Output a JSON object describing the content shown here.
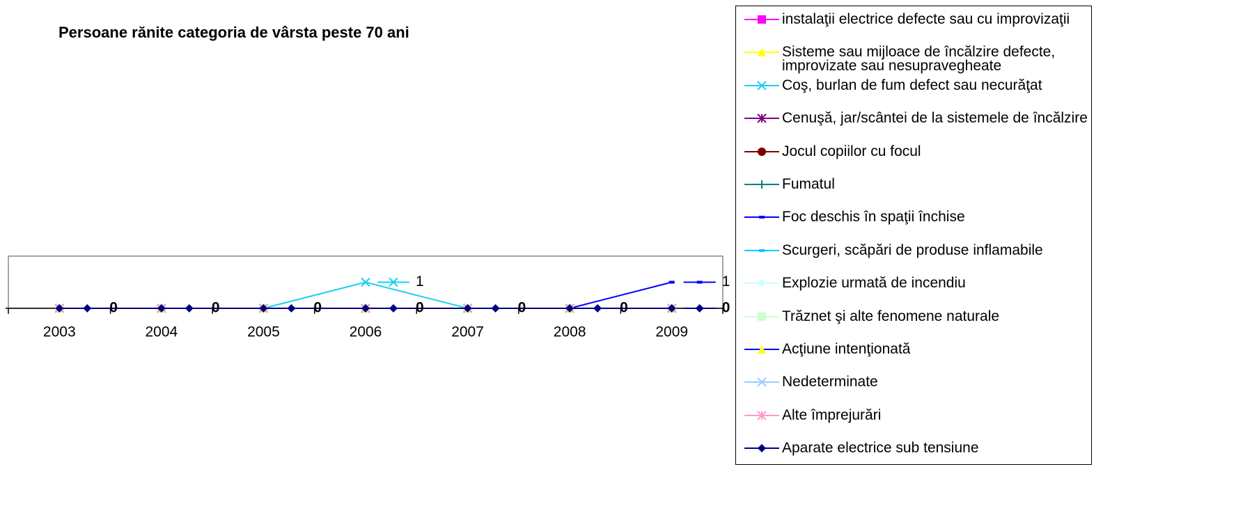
{
  "chart_data": {
    "type": "line",
    "title": "Persoane rănite categoria de vârsta peste 70  ani",
    "categories": [
      "2003",
      "2004",
      "2005",
      "2006",
      "2007",
      "2008",
      "2009"
    ],
    "ylim": [
      0,
      2
    ],
    "legend": "right",
    "series": [
      {
        "name": "instalaţii electrice defecte sau cu improvizaţii",
        "color": "#ff00ff",
        "marker": "square",
        "values": [
          0,
          0,
          0,
          0,
          0,
          0,
          0
        ]
      },
      {
        "name": "Sisteme sau mijloace de încălzire defecte, improvizate sau nesupravegheate",
        "color": "#ffff00",
        "marker": "triangle",
        "values": [
          0,
          0,
          0,
          0,
          0,
          0,
          0
        ]
      },
      {
        "name": "Coş, burlan de fum defect sau necurăţat",
        "color": "#1ad0ee",
        "marker": "x",
        "values": [
          0,
          0,
          0,
          1,
          0,
          0,
          0
        ]
      },
      {
        "name": "Cenuşă, jar/scântei de la sistemele de încălzire",
        "color": "#800080",
        "marker": "star",
        "values": [
          0,
          0,
          0,
          0,
          0,
          0,
          0
        ]
      },
      {
        "name": "Jocul copiilor cu focul",
        "color": "#800000",
        "marker": "circle",
        "values": [
          0,
          0,
          0,
          0,
          0,
          0,
          0
        ]
      },
      {
        "name": "Fumatul",
        "color": "#008080",
        "marker": "plus",
        "values": [
          0,
          0,
          0,
          0,
          0,
          0,
          0
        ]
      },
      {
        "name": "Foc deschis în spaţii închise",
        "color": "#0000ff",
        "marker": "dash",
        "values": [
          0,
          0,
          0,
          0,
          0,
          0,
          1
        ]
      },
      {
        "name": "Scurgeri, scăpări de produse inflamabile",
        "color": "#00ccff",
        "marker": "dash",
        "values": [
          0,
          0,
          0,
          0,
          0,
          0,
          0
        ]
      },
      {
        "name": "Explozie urmată de incendiu",
        "color": "#ccffff",
        "marker": "diamond",
        "values": [
          0,
          0,
          0,
          0,
          0,
          0,
          0
        ]
      },
      {
        "name": "Trăznet şi alte fenomene naturale",
        "color": "#ccffcc",
        "marker": "square",
        "values": [
          0,
          0,
          0,
          0,
          0,
          0,
          0
        ]
      },
      {
        "name": "Acţiune intenţionată",
        "color": "#0000ff",
        "marker_color": "#ffff00",
        "marker": "triangle",
        "values": [
          0,
          0,
          0,
          0,
          0,
          0,
          0
        ]
      },
      {
        "name": "Nedeterminate",
        "color": "#99ccff",
        "marker": "x",
        "values": [
          0,
          0,
          0,
          0,
          0,
          0,
          0
        ]
      },
      {
        "name": "Alte împrejurări",
        "color": "#ff99cc",
        "marker": "star",
        "values": [
          0,
          0,
          0,
          0,
          0,
          0,
          0
        ]
      },
      {
        "name": "Aparate electrice sub tensiune",
        "color": "#000080",
        "marker": "diamond",
        "values": [
          0,
          0,
          0,
          0,
          0,
          0,
          0
        ]
      }
    ]
  }
}
